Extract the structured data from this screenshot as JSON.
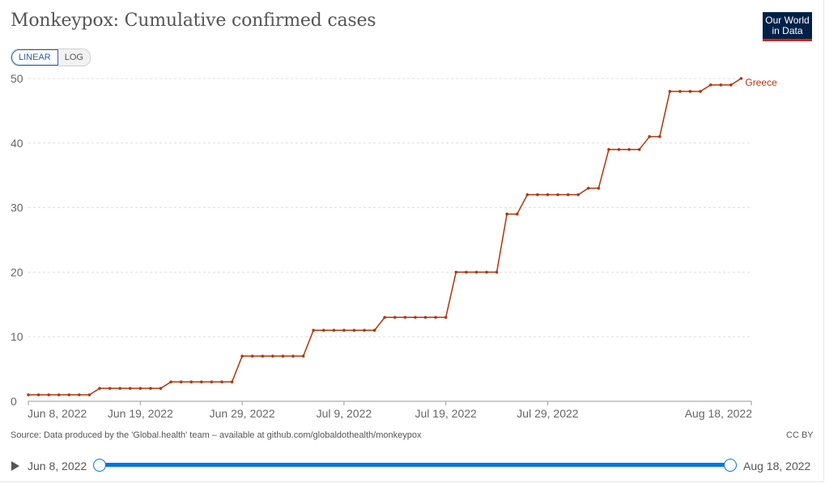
{
  "title": "Monkeypox: Cumulative confirmed cases",
  "logo": {
    "line1": "Our World",
    "line2": "in Data"
  },
  "scale_toggle": {
    "linear": "LINEAR",
    "log": "LOG",
    "active": "linear"
  },
  "source": "Source: Data produced by the 'Global.health' team – available at github.com/globaldothealth/monkeypox",
  "license": "CC BY",
  "timeline": {
    "start_label": "Jun 8, 2022",
    "end_label": "Aug 18, 2022"
  },
  "colors": {
    "series": "#b13507",
    "grid": "#dddddd",
    "axis_text": "#666666"
  },
  "chart_data": {
    "type": "line",
    "title": "Monkeypox: Cumulative confirmed cases",
    "x_start": "2022-06-08",
    "x_end": "2022-08-18",
    "x_ticks": [
      "Jun 8, 2022",
      "Jun 19, 2022",
      "Jun 29, 2022",
      "Jul 9, 2022",
      "Jul 19, 2022",
      "Jul 29, 2022",
      "Aug 18, 2022"
    ],
    "y_ticks": [
      0,
      10,
      20,
      30,
      40,
      50
    ],
    "ylim": [
      0,
      50
    ],
    "grid": true,
    "series": [
      {
        "name": "Greece",
        "values": [
          1,
          1,
          1,
          1,
          1,
          1,
          1,
          2,
          2,
          2,
          2,
          2,
          2,
          2,
          3,
          3,
          3,
          3,
          3,
          3,
          3,
          7,
          7,
          7,
          7,
          7,
          7,
          7,
          11,
          11,
          11,
          11,
          11,
          11,
          11,
          13,
          13,
          13,
          13,
          13,
          13,
          13,
          20,
          20,
          20,
          20,
          20,
          29,
          29,
          32,
          32,
          32,
          32,
          32,
          32,
          33,
          33,
          39,
          39,
          39,
          39,
          41,
          41,
          48,
          48,
          48,
          48,
          49,
          49,
          49,
          50
        ]
      }
    ]
  }
}
